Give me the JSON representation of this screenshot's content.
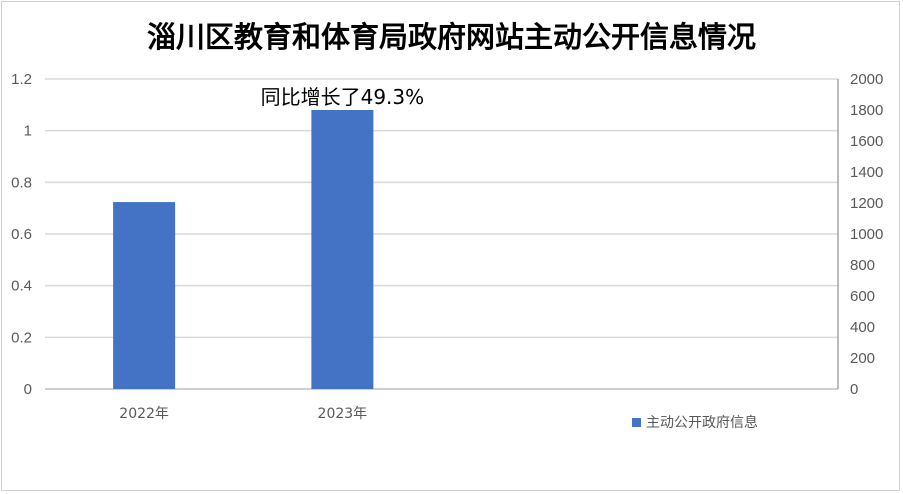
{
  "chart_data": {
    "type": "bar",
    "title": "淄川区教育和体育局政府网站主动公开信息情况",
    "categories": [
      "2022年",
      "2023年",
      "",
      ""
    ],
    "series": [
      {
        "name": "主动公开政府信息",
        "values": [
          1206,
          1800,
          null,
          null
        ],
        "color": "#4472C4",
        "axis": "right"
      }
    ],
    "y_left": {
      "lim": [
        0,
        1.2
      ],
      "ticks": [
        "0",
        "0.2",
        "0.4",
        "0.6",
        "0.8",
        "1",
        "1.2"
      ]
    },
    "y_right": {
      "lim": [
        0,
        2000
      ],
      "ticks": [
        "0",
        "200",
        "400",
        "600",
        "800",
        "1000",
        "1200",
        "1400",
        "1600",
        "1800",
        "2000"
      ]
    },
    "annotation": "同比增长了49.3%",
    "grid": true,
    "legend": "bottom-right"
  }
}
